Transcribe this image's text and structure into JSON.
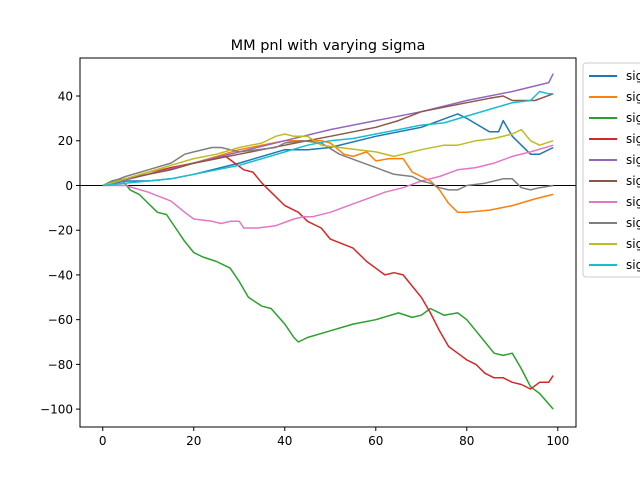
{
  "chart_data": {
    "type": "line",
    "title": "MM pnl with varying sigma",
    "xlabel": "",
    "ylabel": "",
    "xlim": [
      -5,
      104
    ],
    "ylim": [
      -108,
      57
    ],
    "xticks": [
      0,
      20,
      40,
      60,
      80,
      100
    ],
    "xtick_labels": [
      "0",
      "20",
      "40",
      "60",
      "80",
      "100"
    ],
    "yticks": [
      -100,
      -80,
      -60,
      -40,
      -20,
      0,
      20,
      40
    ],
    "ytick_labels": [
      "−100",
      "−80",
      "−60",
      "−40",
      "−20",
      "0",
      "20",
      "40"
    ],
    "zero_line": true,
    "grid": false,
    "legend_position": "outside-right-top",
    "series": [
      {
        "name": "sig",
        "color": "#1f77b4",
        "points": [
          [
            0,
            0
          ],
          [
            5,
            2
          ],
          [
            10,
            2
          ],
          [
            15,
            3
          ],
          [
            20,
            5
          ],
          [
            30,
            10
          ],
          [
            40,
            16
          ],
          [
            45,
            16
          ],
          [
            50,
            17
          ],
          [
            60,
            22
          ],
          [
            70,
            26
          ],
          [
            78,
            32
          ],
          [
            80,
            30
          ],
          [
            85,
            24
          ],
          [
            87,
            24
          ],
          [
            88,
            29
          ],
          [
            90,
            22
          ],
          [
            92,
            18
          ],
          [
            94,
            14
          ],
          [
            96,
            14
          ],
          [
            99,
            17
          ]
        ]
      },
      {
        "name": "sig",
        "color": "#ff7f0e",
        "points": [
          [
            0,
            0
          ],
          [
            5,
            3
          ],
          [
            10,
            6
          ],
          [
            20,
            10
          ],
          [
            30,
            16
          ],
          [
            40,
            20
          ],
          [
            48,
            20
          ],
          [
            50,
            19
          ],
          [
            53,
            14
          ],
          [
            55,
            13
          ],
          [
            58,
            15
          ],
          [
            60,
            11
          ],
          [
            63,
            12
          ],
          [
            66,
            12
          ],
          [
            68,
            6
          ],
          [
            70,
            4
          ],
          [
            72,
            2
          ],
          [
            74,
            -2
          ],
          [
            76,
            -8
          ],
          [
            78,
            -12
          ],
          [
            80,
            -12
          ],
          [
            85,
            -11
          ],
          [
            90,
            -9
          ],
          [
            95,
            -6
          ],
          [
            99,
            -4
          ]
        ]
      },
      {
        "name": "sig",
        "color": "#2ca02c",
        "points": [
          [
            0,
            0
          ],
          [
            2,
            2
          ],
          [
            4,
            3
          ],
          [
            6,
            -2
          ],
          [
            8,
            -4
          ],
          [
            10,
            -8
          ],
          [
            12,
            -12
          ],
          [
            14,
            -13
          ],
          [
            16,
            -19
          ],
          [
            18,
            -25
          ],
          [
            20,
            -30
          ],
          [
            22,
            -32
          ],
          [
            25,
            -34
          ],
          [
            28,
            -37
          ],
          [
            30,
            -43
          ],
          [
            32,
            -50
          ],
          [
            35,
            -54
          ],
          [
            37,
            -55
          ],
          [
            40,
            -62
          ],
          [
            42,
            -68
          ],
          [
            43,
            -70
          ],
          [
            45,
            -68
          ],
          [
            50,
            -65
          ],
          [
            55,
            -62
          ],
          [
            60,
            -60
          ],
          [
            65,
            -57
          ],
          [
            68,
            -59
          ],
          [
            70,
            -58
          ],
          [
            72,
            -55
          ],
          [
            75,
            -58
          ],
          [
            78,
            -57
          ],
          [
            80,
            -60
          ],
          [
            82,
            -65
          ],
          [
            84,
            -70
          ],
          [
            86,
            -75
          ],
          [
            88,
            -76
          ],
          [
            90,
            -75
          ],
          [
            92,
            -82
          ],
          [
            94,
            -90
          ],
          [
            96,
            -93
          ],
          [
            99,
            -100
          ]
        ]
      },
      {
        "name": "sig",
        "color": "#d62728",
        "points": [
          [
            0,
            0
          ],
          [
            5,
            3
          ],
          [
            10,
            5
          ],
          [
            15,
            8
          ],
          [
            20,
            10
          ],
          [
            25,
            12
          ],
          [
            27,
            13
          ],
          [
            29,
            10
          ],
          [
            31,
            7
          ],
          [
            33,
            6
          ],
          [
            35,
            1
          ],
          [
            37,
            -3
          ],
          [
            40,
            -9
          ],
          [
            43,
            -12
          ],
          [
            45,
            -16
          ],
          [
            48,
            -19
          ],
          [
            50,
            -24
          ],
          [
            55,
            -28
          ],
          [
            58,
            -34
          ],
          [
            60,
            -37
          ],
          [
            62,
            -40
          ],
          [
            64,
            -39
          ],
          [
            66,
            -40
          ],
          [
            68,
            -45
          ],
          [
            70,
            -50
          ],
          [
            72,
            -57
          ],
          [
            74,
            -65
          ],
          [
            76,
            -72
          ],
          [
            78,
            -75
          ],
          [
            80,
            -78
          ],
          [
            82,
            -80
          ],
          [
            84,
            -84
          ],
          [
            86,
            -86
          ],
          [
            88,
            -86
          ],
          [
            90,
            -88
          ],
          [
            92,
            -89
          ],
          [
            94,
            -91
          ],
          [
            96,
            -88
          ],
          [
            98,
            -88
          ],
          [
            99,
            -85
          ]
        ]
      },
      {
        "name": "sig",
        "color": "#9467bd",
        "points": [
          [
            0,
            0
          ],
          [
            10,
            5
          ],
          [
            20,
            10
          ],
          [
            30,
            15
          ],
          [
            40,
            20
          ],
          [
            50,
            25
          ],
          [
            60,
            29
          ],
          [
            70,
            33
          ],
          [
            80,
            38
          ],
          [
            90,
            42
          ],
          [
            98,
            46
          ],
          [
            99,
            50
          ]
        ]
      },
      {
        "name": "sig",
        "color": "#8c564b",
        "points": [
          [
            0,
            0
          ],
          [
            5,
            3
          ],
          [
            10,
            5
          ],
          [
            15,
            7
          ],
          [
            20,
            10
          ],
          [
            25,
            12
          ],
          [
            30,
            14
          ],
          [
            35,
            16
          ],
          [
            40,
            18
          ],
          [
            45,
            20
          ],
          [
            50,
            22
          ],
          [
            55,
            24
          ],
          [
            60,
            26
          ],
          [
            65,
            29
          ],
          [
            70,
            33
          ],
          [
            75,
            35
          ],
          [
            80,
            37
          ],
          [
            85,
            39
          ],
          [
            88,
            40
          ],
          [
            90,
            38
          ],
          [
            92,
            38
          ],
          [
            95,
            38
          ],
          [
            99,
            41
          ]
        ]
      },
      {
        "name": "sig",
        "color": "#e377c2",
        "points": [
          [
            0,
            0
          ],
          [
            5,
            0
          ],
          [
            10,
            -3
          ],
          [
            15,
            -7
          ],
          [
            18,
            -12
          ],
          [
            20,
            -15
          ],
          [
            24,
            -16
          ],
          [
            26,
            -17
          ],
          [
            28,
            -16
          ],
          [
            30,
            -16
          ],
          [
            31,
            -19
          ],
          [
            34,
            -19
          ],
          [
            38,
            -18
          ],
          [
            42,
            -15
          ],
          [
            44,
            -14
          ],
          [
            46,
            -14
          ],
          [
            50,
            -12
          ],
          [
            54,
            -9
          ],
          [
            58,
            -6
          ],
          [
            62,
            -3
          ],
          [
            66,
            -1
          ],
          [
            70,
            2
          ],
          [
            74,
            4
          ],
          [
            78,
            7
          ],
          [
            82,
            8
          ],
          [
            86,
            10
          ],
          [
            90,
            13
          ],
          [
            94,
            15
          ],
          [
            99,
            18
          ]
        ]
      },
      {
        "name": "sig",
        "color": "#7f7f7f",
        "points": [
          [
            0,
            0
          ],
          [
            5,
            4
          ],
          [
            10,
            7
          ],
          [
            15,
            10
          ],
          [
            18,
            14
          ],
          [
            20,
            15
          ],
          [
            24,
            17
          ],
          [
            26,
            17
          ],
          [
            30,
            15
          ],
          [
            34,
            16
          ],
          [
            38,
            17
          ],
          [
            40,
            19
          ],
          [
            44,
            20
          ],
          [
            48,
            19
          ],
          [
            52,
            14
          ],
          [
            56,
            11
          ],
          [
            60,
            8
          ],
          [
            64,
            5
          ],
          [
            68,
            4
          ],
          [
            70,
            2
          ],
          [
            72,
            1
          ],
          [
            74,
            -1
          ],
          [
            76,
            -2
          ],
          [
            78,
            -2
          ],
          [
            80,
            0
          ],
          [
            84,
            1
          ],
          [
            86,
            2
          ],
          [
            88,
            3
          ],
          [
            90,
            3
          ],
          [
            92,
            -1
          ],
          [
            94,
            -2
          ],
          [
            96,
            -1
          ],
          [
            99,
            0
          ]
        ]
      },
      {
        "name": "sig",
        "color": "#bcbd22",
        "points": [
          [
            0,
            0
          ],
          [
            5,
            3
          ],
          [
            10,
            6
          ],
          [
            15,
            9
          ],
          [
            20,
            12
          ],
          [
            25,
            14
          ],
          [
            30,
            17
          ],
          [
            35,
            19
          ],
          [
            38,
            22
          ],
          [
            40,
            23
          ],
          [
            42,
            22
          ],
          [
            45,
            22
          ],
          [
            48,
            18
          ],
          [
            52,
            17
          ],
          [
            56,
            16
          ],
          [
            60,
            15
          ],
          [
            64,
            13
          ],
          [
            66,
            14
          ],
          [
            68,
            15
          ],
          [
            70,
            16
          ],
          [
            75,
            18
          ],
          [
            78,
            18
          ],
          [
            82,
            20
          ],
          [
            86,
            21
          ],
          [
            90,
            23
          ],
          [
            92,
            25
          ],
          [
            94,
            20
          ],
          [
            96,
            18
          ],
          [
            99,
            20
          ]
        ]
      },
      {
        "name": "sig",
        "color": "#17becf",
        "points": [
          [
            0,
            0
          ],
          [
            5,
            1
          ],
          [
            10,
            2
          ],
          [
            15,
            3
          ],
          [
            20,
            5
          ],
          [
            25,
            7
          ],
          [
            30,
            9
          ],
          [
            35,
            12
          ],
          [
            40,
            15
          ],
          [
            45,
            18
          ],
          [
            50,
            20
          ],
          [
            55,
            21
          ],
          [
            60,
            23
          ],
          [
            65,
            25
          ],
          [
            70,
            27
          ],
          [
            75,
            28
          ],
          [
            80,
            31
          ],
          [
            85,
            34
          ],
          [
            90,
            37
          ],
          [
            94,
            38
          ],
          [
            96,
            42
          ],
          [
            98,
            41
          ],
          [
            99,
            41
          ]
        ]
      }
    ]
  }
}
